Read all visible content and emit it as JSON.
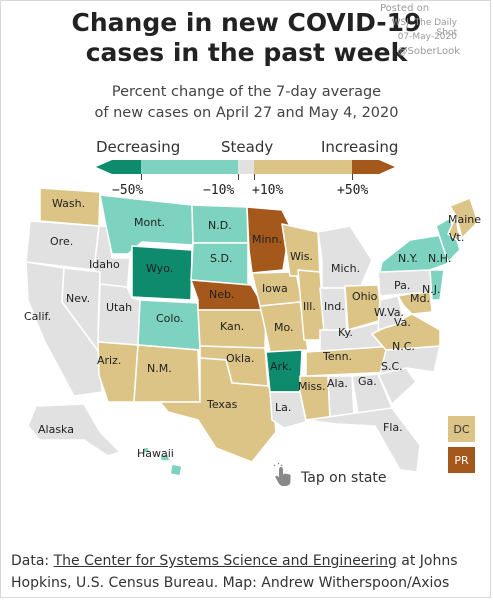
{
  "title_line1": "Change in new COVID-19",
  "title_line2": "cases in the past week",
  "subtitle_line1": "Percent change of the 7-day average",
  "subtitle_line2": "of new cases on April 27 and May 4, 2020",
  "watermark": {
    "line1": "Posted on",
    "line2": "WSJ: The Daily Shot",
    "line3": "07-May-2020",
    "line4": "@SoberLook"
  },
  "legend": {
    "decreasing": "Decreasing",
    "steady": "Steady",
    "increasing": "Increasing",
    "ticks": [
      "−50%",
      "−10%",
      "+10%",
      "+50%"
    ],
    "colors": {
      "strong_decrease": "#0e8a6d",
      "decrease": "#7dd3c0",
      "steady": "#e1e1e1",
      "increase": "#dcc486",
      "strong_increase": "#a4581b"
    }
  },
  "states": [
    {
      "label": "Wash.",
      "category": "increase"
    },
    {
      "label": "Ore.",
      "category": "steady"
    },
    {
      "label": "Calif.",
      "category": "steady"
    },
    {
      "label": "Idaho",
      "category": "steady"
    },
    {
      "label": "Nev.",
      "category": "steady"
    },
    {
      "label": "Utah",
      "category": "steady"
    },
    {
      "label": "Ariz.",
      "category": "increase"
    },
    {
      "label": "Mont.",
      "category": "decrease"
    },
    {
      "label": "Wyo.",
      "category": "strong_decrease"
    },
    {
      "label": "Colo.",
      "category": "decrease"
    },
    {
      "label": "N.M.",
      "category": "increase"
    },
    {
      "label": "N.D.",
      "category": "decrease"
    },
    {
      "label": "S.D.",
      "category": "decrease"
    },
    {
      "label": "Neb.",
      "category": "strong_increase"
    },
    {
      "label": "Kan.",
      "category": "increase"
    },
    {
      "label": "Okla.",
      "category": "increase"
    },
    {
      "label": "Texas",
      "category": "increase"
    },
    {
      "label": "Minn.",
      "category": "strong_increase"
    },
    {
      "label": "Iowa",
      "category": "increase"
    },
    {
      "label": "Mo.",
      "category": "increase"
    },
    {
      "label": "Ark.",
      "category": "strong_decrease"
    },
    {
      "label": "La.",
      "category": "steady"
    },
    {
      "label": "Wis.",
      "category": "increase"
    },
    {
      "label": "Ill.",
      "category": "increase"
    },
    {
      "label": "Mich.",
      "category": "steady"
    },
    {
      "label": "Ind.",
      "category": "steady"
    },
    {
      "label": "Ohio",
      "category": "increase"
    },
    {
      "label": "Ky.",
      "category": "steady"
    },
    {
      "label": "Tenn.",
      "category": "increase"
    },
    {
      "label": "Miss.",
      "category": "increase"
    },
    {
      "label": "Ala.",
      "category": "steady"
    },
    {
      "label": "Ga.",
      "category": "steady"
    },
    {
      "label": "Fla.",
      "category": "steady"
    },
    {
      "label": "S.C.",
      "category": "steady"
    },
    {
      "label": "N.C.",
      "category": "steady"
    },
    {
      "label": "Va.",
      "category": "increase"
    },
    {
      "label": "W.Va.",
      "category": "steady"
    },
    {
      "label": "Md.",
      "category": "increase"
    },
    {
      "label": "Pa.",
      "category": "steady"
    },
    {
      "label": "N.J.",
      "category": "decrease"
    },
    {
      "label": "N.Y.",
      "category": "decrease"
    },
    {
      "label": "N.H.",
      "category": "decrease"
    },
    {
      "label": "Vt.",
      "category": "increase"
    },
    {
      "label": "Maine",
      "category": "increase"
    },
    {
      "label": "Alaska",
      "category": "steady"
    },
    {
      "label": "Hawaii",
      "category": "decrease"
    },
    {
      "label": "DC",
      "category": "increase"
    },
    {
      "label": "PR",
      "category": "strong_increase"
    }
  ],
  "tap_hint": "Tap on state",
  "source": {
    "prefix": "Data: ",
    "link": "The Center for Systems Science and Engineering",
    "rest": " at Johns Hopkins, U.S. Census Bureau. Map: Andrew Witherspoon/Axios"
  }
}
